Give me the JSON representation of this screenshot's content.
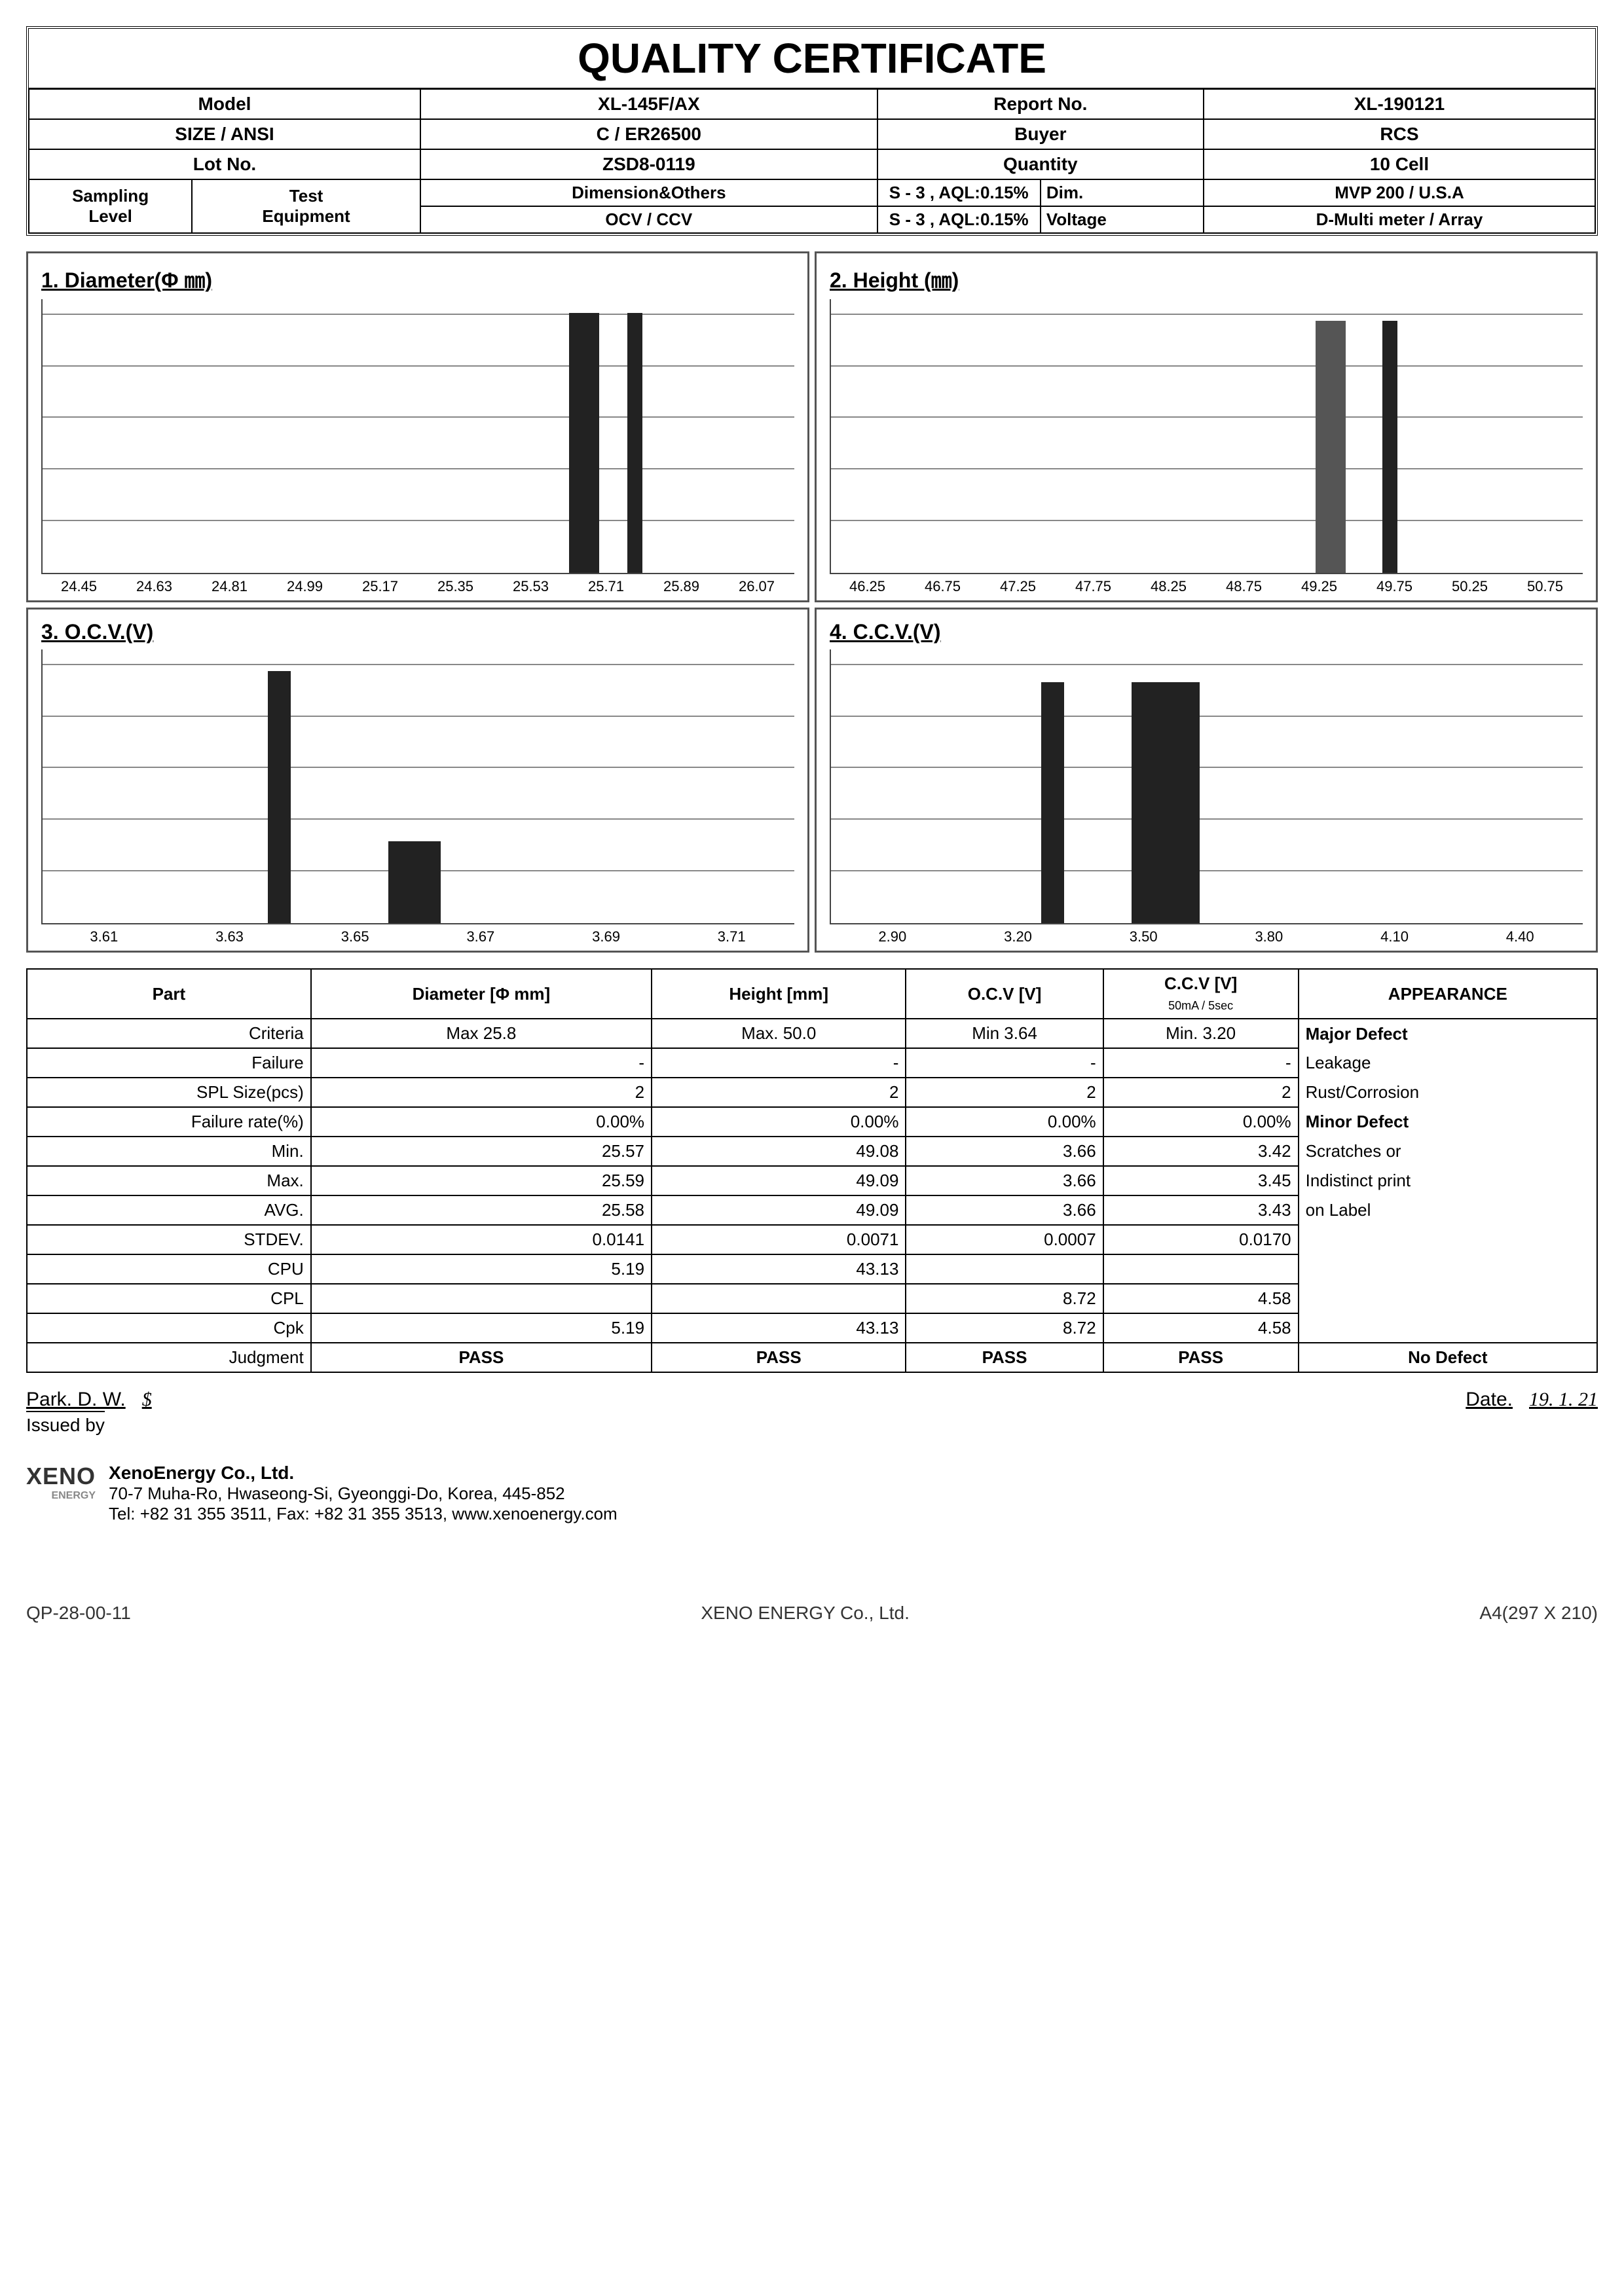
{
  "title": "QUALITY CERTIFICATE",
  "header": {
    "labels": {
      "model": "Model",
      "report_no": "Report No.",
      "size_ansi": "SIZE / ANSI",
      "buyer": "Buyer",
      "lot_no": "Lot No.",
      "quantity": "Quantity",
      "sampling": "Sampling",
      "level": "Level",
      "dim_others": "Dimension&Others",
      "ocv_ccv": "OCV / CCV",
      "test": "Test",
      "equipment": "Equipment",
      "dim": "Dim.",
      "voltage": "Voltage"
    },
    "values": {
      "model": "XL-145F/AX",
      "report_no": "XL-190121",
      "size_ansi": "C / ER26500",
      "buyer": "RCS",
      "lot_no": "ZSD8-0119",
      "quantity": "10 Cell",
      "sampling_dim": "S - 3 ,  AQL:0.15%",
      "sampling_ocv": "S - 3 ,  AQL:0.15%",
      "test_dim": "MVP 200 / U.S.A",
      "test_voltage": "D-Multi meter  / Array"
    }
  },
  "charts": [
    {
      "title": "1. Diameter(Φ ㎜)",
      "type": "bar",
      "grid_lines": 5,
      "grid_color": "#888888",
      "bar_color": "#222222",
      "x_ticks": [
        "24.45",
        "24.63",
        "24.81",
        "24.99",
        "25.17",
        "25.35",
        "25.53",
        "25.71",
        "25.89",
        "26.07"
      ],
      "bars": [
        {
          "x_index": 6.3,
          "height_pct": 95,
          "width_pct": 4
        },
        {
          "x_index": 7.0,
          "height_pct": 95,
          "width_pct": 2
        }
      ]
    },
    {
      "title": "2. Height (㎜)",
      "type": "bar",
      "grid_lines": 5,
      "grid_color": "#888888",
      "bar_color": "#222222",
      "x_ticks": [
        "46.25",
        "46.75",
        "47.25",
        "47.75",
        "48.25",
        "48.75",
        "49.25",
        "49.75",
        "50.25",
        "50.75"
      ],
      "bars": [
        {
          "x_index": 5.8,
          "height_pct": 92,
          "width_pct": 4,
          "color": "#555555"
        },
        {
          "x_index": 6.6,
          "height_pct": 92,
          "width_pct": 2
        }
      ]
    },
    {
      "title": "3. O.C.V.(V)",
      "type": "bar",
      "grid_lines": 5,
      "grid_color": "#888888",
      "bar_color": "#222222",
      "x_ticks": [
        "3.61",
        "3.63",
        "3.65",
        "3.67",
        "3.69",
        "3.71"
      ],
      "bars": [
        {
          "x_index": 1.5,
          "height_pct": 92,
          "width_pct": 3
        },
        {
          "x_index": 2.3,
          "height_pct": 30,
          "width_pct": 7
        }
      ]
    },
    {
      "title": "4. C.C.V.(V)",
      "type": "bar",
      "grid_lines": 5,
      "grid_color": "#888888",
      "bar_color": "#222222",
      "x_ticks": [
        "2.90",
        "3.20",
        "3.50",
        "3.80",
        "4.10",
        "4.40"
      ],
      "bars": [
        {
          "x_index": 1.4,
          "height_pct": 88,
          "width_pct": 3
        },
        {
          "x_index": 2.0,
          "height_pct": 88,
          "width_pct": 9
        }
      ]
    }
  ],
  "table": {
    "headers": {
      "part": "Part",
      "diameter": "Diameter [Φ mm]",
      "height": "Height [mm]",
      "ocv": "O.C.V [V]",
      "ccv": "C.C.V  [V]",
      "ccv_sub": "50mA / 5sec",
      "appearance": "APPEARANCE"
    },
    "row_labels": [
      "Criteria",
      "Failure",
      "SPL Size(pcs)",
      "Failure rate(%)",
      "Min.",
      "Max.",
      "AVG.",
      "STDEV.",
      "CPU",
      "CPL",
      "Cpk",
      "Judgment"
    ],
    "cols": {
      "diameter": [
        "Max 25.8",
        "-",
        "2",
        "0.00%",
        "25.57",
        "25.59",
        "25.58",
        "0.0141",
        "5.19",
        "",
        "5.19",
        "PASS"
      ],
      "height": [
        "Max.  50.0",
        "-",
        "2",
        "0.00%",
        "49.08",
        "49.09",
        "49.09",
        "0.0071",
        "43.13",
        "",
        "43.13",
        "PASS"
      ],
      "ocv": [
        "Min 3.64",
        "-",
        "2",
        "0.00%",
        "3.66",
        "3.66",
        "3.66",
        "0.0007",
        "",
        "8.72",
        "8.72",
        "PASS"
      ],
      "ccv": [
        "Min.  3.20",
        "-",
        "2",
        "0.00%",
        "3.42",
        "3.45",
        "3.43",
        "0.0170",
        "",
        "4.58",
        "4.58",
        "PASS"
      ]
    },
    "appearance": {
      "major_label": "Major Defect",
      "major_items": [
        "Leakage",
        "Rust/Corrosion"
      ],
      "minor_label": "Minor Defect",
      "minor_items": [
        "Scratches or",
        "  Indistinct print",
        "  on Label"
      ],
      "judgment": "No Defect"
    }
  },
  "signature": {
    "name": "Park. D. W.",
    "issued_by": "Issued by",
    "date_label": "Date.",
    "date_value": "19. 1. 21"
  },
  "company": {
    "logo_main": "XENO",
    "logo_sub": "ENERGY",
    "name": "XenoEnergy Co., Ltd.",
    "addr": "70-7 Muha-Ro, Hwaseong-Si, Gyeonggi-Do, Korea, 445-852",
    "contact": "Tel: +82 31 355 3511, Fax: +82 31 355 3513, www.xenoenergy.com"
  },
  "footer": {
    "left": "QP-28-00-11",
    "center": "XENO ENERGY Co., Ltd.",
    "right": "A4(297 X 210)"
  }
}
